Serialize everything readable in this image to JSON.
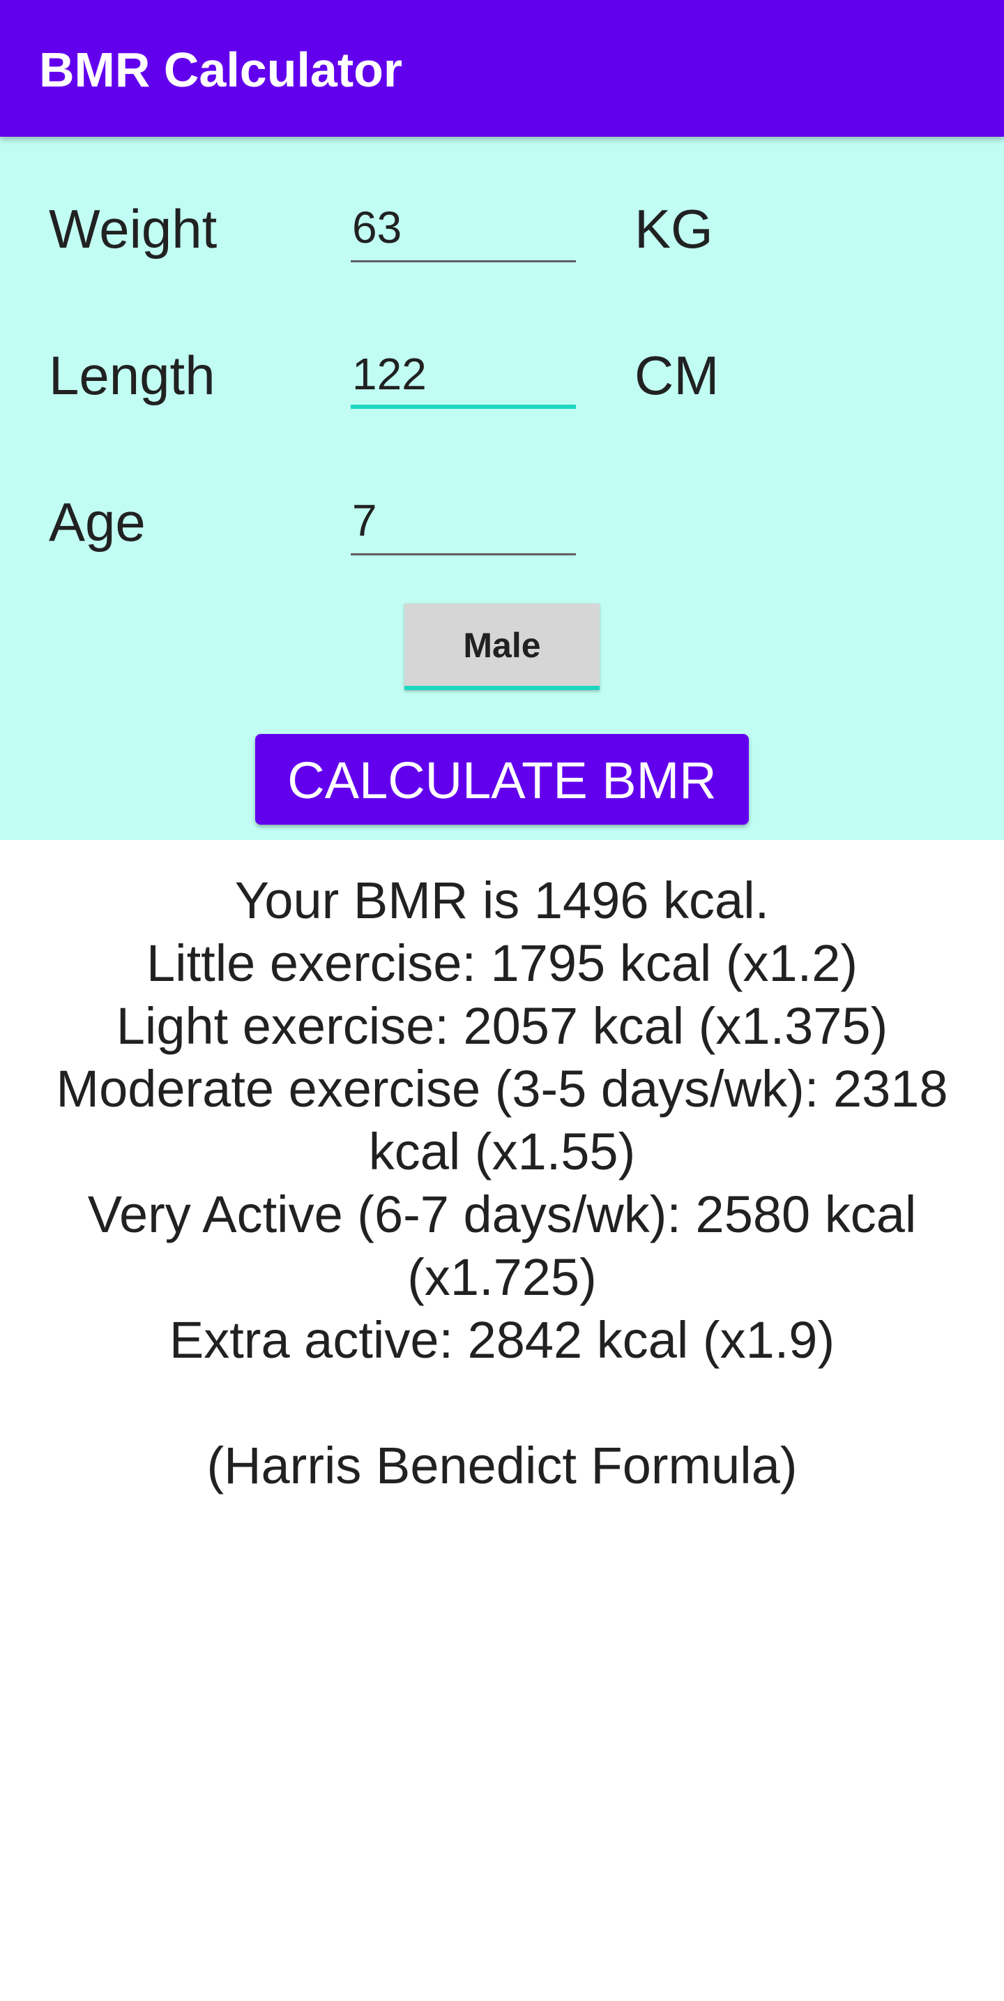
{
  "appbar": {
    "title": "BMR Calculator"
  },
  "form": {
    "weight": {
      "label": "Weight",
      "value": "63",
      "unit": "KG"
    },
    "length": {
      "label": "Length",
      "value": "122",
      "unit": "CM"
    },
    "age": {
      "label": "Age",
      "value": "7"
    },
    "gender_button_label": "Male",
    "calculate_button_label": "CALCULATE BMR"
  },
  "results": {
    "bmr": "Your BMR is 1496 kcal.",
    "little": "Little exercise: 1795 kcal (x1.2)",
    "light": "Light exercise: 2057 kcal (x1.375)",
    "moderate_a": "Moderate exercise (3-5 days/wk): 2318",
    "moderate_b": "kcal (x1.55)",
    "very_a": "Very Active (6-7 days/wk): 2580 kcal",
    "very_b": "(x1.725)",
    "extra": "Extra active: 2842 kcal (x1.9)",
    "formula": "(Harris Benedict Formula)"
  },
  "colors": {
    "primary": "#6200EE",
    "form_background": "#C1FDF3",
    "accent": "#1ED6C0",
    "button_gray": "#D6D6D6"
  }
}
